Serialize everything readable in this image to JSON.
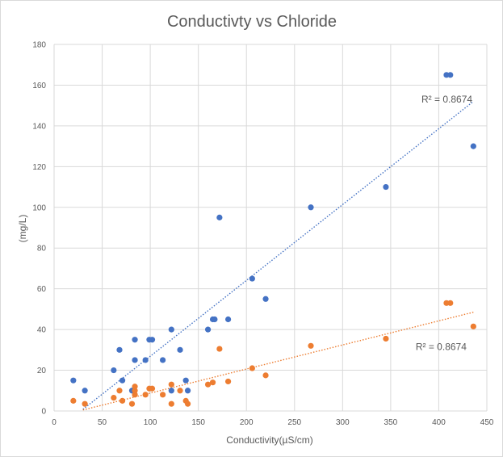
{
  "chart_data": {
    "type": "scatter",
    "title": "Conductivty vs Chloride",
    "xlabel": "Conductivity(µS/cm)",
    "ylabel": "(mg/L)",
    "xlim": [
      0,
      450
    ],
    "ylim": [
      0,
      180
    ],
    "x_ticks": [
      0,
      50,
      100,
      150,
      200,
      250,
      300,
      350,
      400,
      450
    ],
    "y_ticks": [
      0,
      20,
      40,
      60,
      80,
      100,
      120,
      140,
      160,
      180
    ],
    "grid": true,
    "legend": "none",
    "series": [
      {
        "name": "series-blue",
        "color": "#4472c4",
        "points": [
          [
            20,
            15
          ],
          [
            32,
            10
          ],
          [
            62,
            20
          ],
          [
            68,
            30
          ],
          [
            71,
            15
          ],
          [
            81,
            10
          ],
          [
            84,
            25
          ],
          [
            84,
            35
          ],
          [
            95,
            25
          ],
          [
            99,
            35
          ],
          [
            102,
            35
          ],
          [
            113,
            25
          ],
          [
            122,
            40
          ],
          [
            122,
            10
          ],
          [
            131,
            30
          ],
          [
            137,
            15
          ],
          [
            139,
            10
          ],
          [
            160,
            40
          ],
          [
            165,
            45
          ],
          [
            167,
            45
          ],
          [
            172,
            95
          ],
          [
            181,
            45
          ],
          [
            206,
            65
          ],
          [
            220,
            55
          ],
          [
            267,
            100
          ],
          [
            345,
            110
          ],
          [
            408,
            165
          ],
          [
            412,
            165
          ],
          [
            436,
            130
          ]
        ],
        "trendline": {
          "x": [
            30,
            436
          ],
          "y": [
            0.8,
            152
          ]
        },
        "annotation": {
          "text": "R² = 0.8674",
          "x": 382,
          "y": 151.5
        }
      },
      {
        "name": "series-orange",
        "color": "#ed7d31",
        "points": [
          [
            20,
            5
          ],
          [
            32,
            3.5
          ],
          [
            62,
            6.5
          ],
          [
            68,
            10
          ],
          [
            71,
            5
          ],
          [
            81,
            3.5
          ],
          [
            84,
            8
          ],
          [
            84,
            10
          ],
          [
            84,
            12
          ],
          [
            95,
            8
          ],
          [
            99,
            11
          ],
          [
            102,
            11
          ],
          [
            113,
            8
          ],
          [
            122,
            3.5
          ],
          [
            122,
            13
          ],
          [
            131,
            10
          ],
          [
            137,
            5
          ],
          [
            139,
            3.5
          ],
          [
            160,
            13
          ],
          [
            165,
            14
          ],
          [
            172,
            30.5
          ],
          [
            181,
            14.5
          ],
          [
            206,
            21
          ],
          [
            220,
            17.5
          ],
          [
            267,
            32
          ],
          [
            345,
            35.5
          ],
          [
            408,
            53
          ],
          [
            412,
            53
          ],
          [
            436,
            41.5
          ]
        ],
        "trendline": {
          "x": [
            30,
            436
          ],
          "y": [
            0.5,
            48.5
          ]
        },
        "annotation": {
          "text": "R² = 0.8674",
          "x": 376,
          "y": 30
        }
      }
    ]
  }
}
